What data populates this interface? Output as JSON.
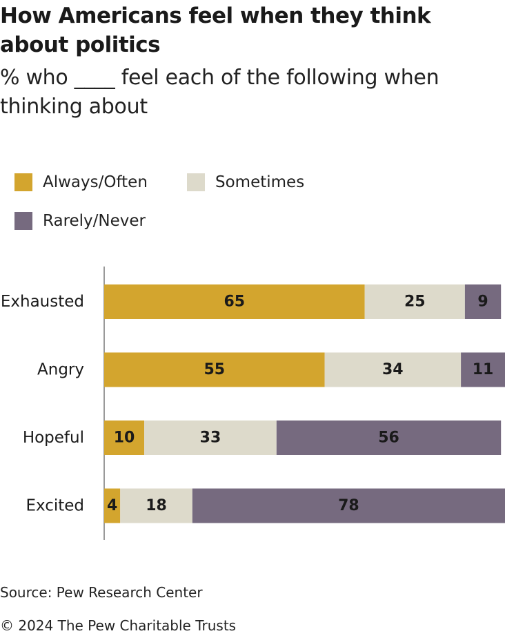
{
  "title": "How Americans feel when they think about politics",
  "subtitle": "% who ____ feel each of the following when thinking about",
  "legend": [
    {
      "label": "Always/Often",
      "color": "#D3A52E"
    },
    {
      "label": "Sometimes",
      "color": "#DDDACB"
    },
    {
      "label": "Rarely/Never",
      "color": "#766A7F"
    }
  ],
  "chart_data": {
    "type": "bar",
    "orientation": "horizontal",
    "stacked": true,
    "categories": [
      "Exhausted",
      "Angry",
      "Hopeful",
      "Excited"
    ],
    "series": [
      {
        "name": "Always/Often",
        "color": "#D3A52E",
        "values": [
          65,
          55,
          10,
          4
        ]
      },
      {
        "name": "Sometimes",
        "color": "#DDDACB",
        "values": [
          25,
          34,
          33,
          18
        ]
      },
      {
        "name": "Rarely/Never",
        "color": "#766A7F",
        "values": [
          9,
          11,
          56,
          78
        ]
      }
    ],
    "xlim": [
      0,
      100
    ],
    "grid": false,
    "legend_position": "top-left"
  },
  "footer": {
    "source": "Source: Pew Research Center",
    "copyright": "© 2024 The Pew Charitable Trusts"
  }
}
